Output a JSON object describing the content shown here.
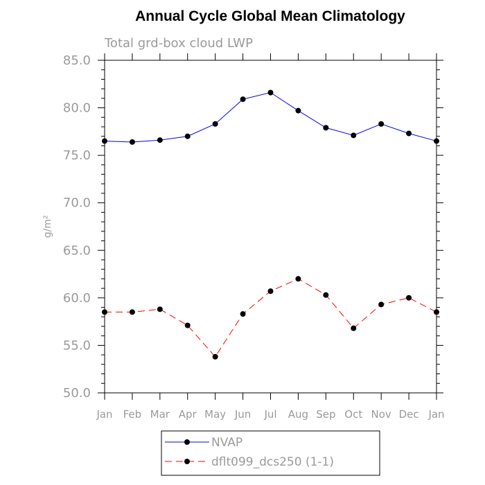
{
  "chart_data": {
    "type": "line",
    "title": "Annual Cycle Global Mean Climatology",
    "subtitle": "Total grd-box cloud LWP",
    "ylabel": "g/m²",
    "xlabel": "",
    "categories": [
      "Jan",
      "Feb",
      "Mar",
      "Apr",
      "May",
      "Jun",
      "Jul",
      "Aug",
      "Sep",
      "Oct",
      "Nov",
      "Dec",
      "Jan"
    ],
    "ylim": [
      50,
      85
    ],
    "yticks": [
      "50.0",
      "55.0",
      "60.0",
      "65.0",
      "70.0",
      "75.0",
      "80.0",
      "85.0"
    ],
    "grid": false,
    "legend_position": "bottom",
    "series": [
      {
        "name": "NVAP",
        "color": "#0000ff",
        "line_style": "solid",
        "marker": "filled-circle",
        "values": [
          76.5,
          76.4,
          76.6,
          77.0,
          78.3,
          80.9,
          81.6,
          79.7,
          77.9,
          77.1,
          78.3,
          77.3,
          76.5
        ]
      },
      {
        "name": "dflt099_dcs250 (1-1)",
        "color": "#ff0000",
        "line_style": "dashed",
        "marker": "filled-circle",
        "values": [
          58.5,
          58.5,
          58.8,
          57.1,
          53.8,
          58.3,
          60.7,
          62.0,
          60.3,
          56.8,
          59.3,
          60.0,
          58.5
        ]
      }
    ]
  }
}
